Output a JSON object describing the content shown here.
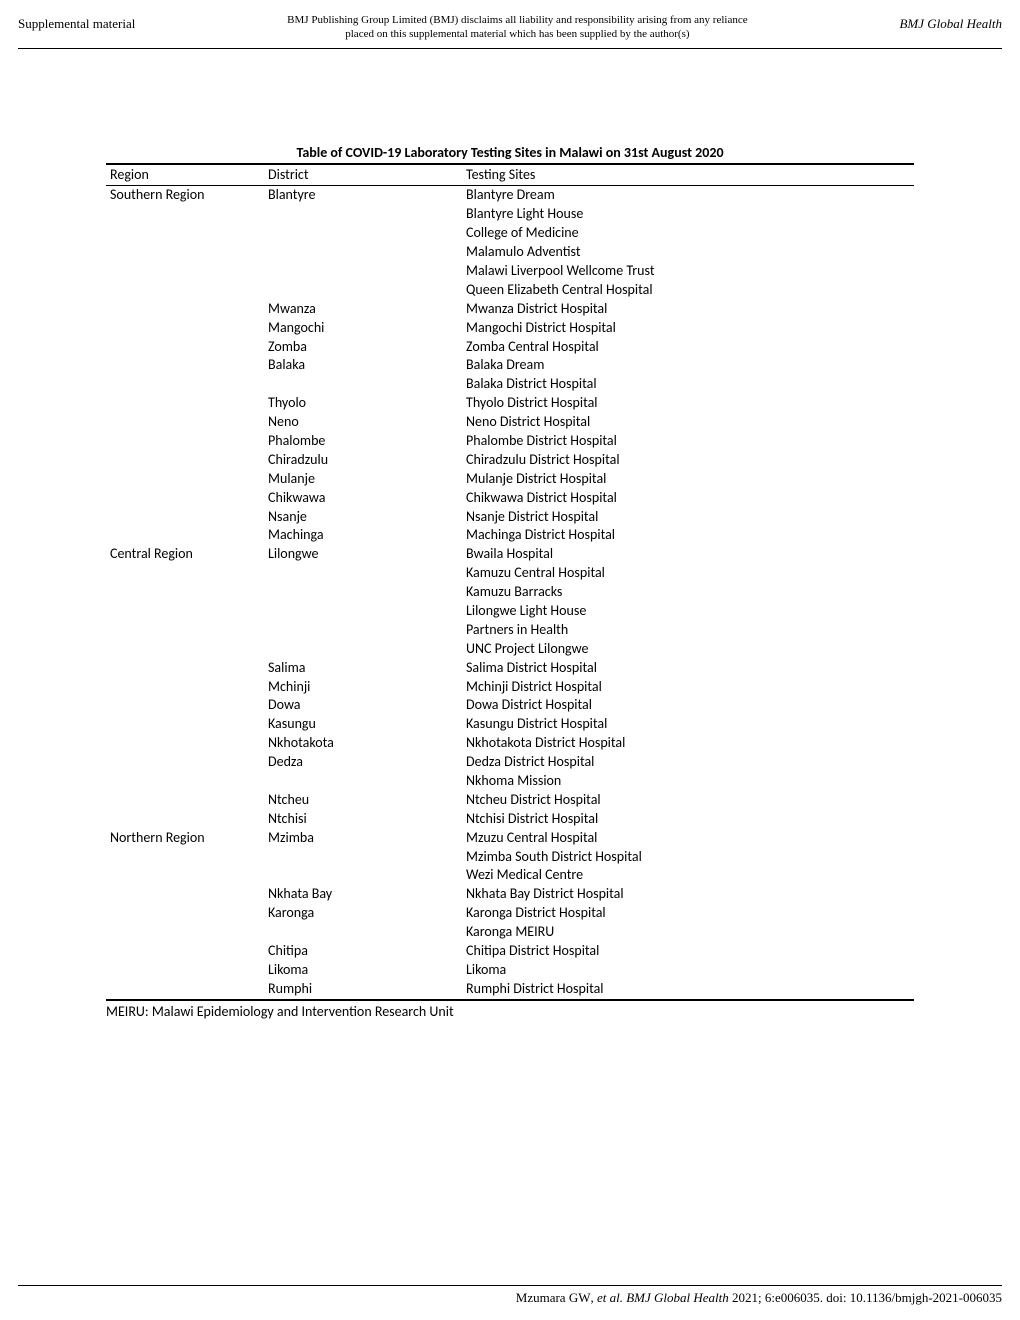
{
  "header": {
    "left": "Supplemental material",
    "disclaimer_line1": "BMJ Publishing Group Limited (BMJ) disclaims all liability and responsibility arising from any reliance",
    "disclaimer_line2": "placed on this supplemental material which has been supplied by the author(s)",
    "journal": "BMJ Global Health"
  },
  "table": {
    "title": "Table of COVID-19 Laboratory Testing Sites in Malawi on 31st August 2020",
    "columns": {
      "region": "Region",
      "district": "District",
      "sites": "Testing Sites"
    },
    "rows": [
      {
        "region": "Southern Region",
        "district": "Blantyre",
        "site": "Blantyre Dream"
      },
      {
        "region": "",
        "district": "",
        "site": "Blantyre Light House"
      },
      {
        "region": "",
        "district": "",
        "site": "College of Medicine"
      },
      {
        "region": "",
        "district": "",
        "site": "Malamulo Adventist"
      },
      {
        "region": "",
        "district": "",
        "site": "Malawi Liverpool Wellcome Trust"
      },
      {
        "region": "",
        "district": "",
        "site": "Queen Elizabeth Central Hospital"
      },
      {
        "region": "",
        "district": "Mwanza",
        "site": "Mwanza District Hospital"
      },
      {
        "region": "",
        "district": "Mangochi",
        "site": "Mangochi District Hospital"
      },
      {
        "region": "",
        "district": "Zomba",
        "site": "Zomba Central Hospital"
      },
      {
        "region": "",
        "district": "Balaka",
        "site": "Balaka Dream"
      },
      {
        "region": "",
        "district": "",
        "site": "Balaka District Hospital"
      },
      {
        "region": "",
        "district": "Thyolo",
        "site": "Thyolo District Hospital"
      },
      {
        "region": "",
        "district": "Neno",
        "site": "Neno District Hospital"
      },
      {
        "region": "",
        "district": "Phalombe",
        "site": "Phalombe District Hospital"
      },
      {
        "region": "",
        "district": "Chiradzulu",
        "site": "Chiradzulu District Hospital"
      },
      {
        "region": "",
        "district": "Mulanje",
        "site": "Mulanje District Hospital"
      },
      {
        "region": "",
        "district": "Chikwawa",
        "site": "Chikwawa District Hospital"
      },
      {
        "region": "",
        "district": "Nsanje",
        "site": "Nsanje District Hospital"
      },
      {
        "region": "",
        "district": "Machinga",
        "site": "Machinga District Hospital"
      },
      {
        "region": "Central Region",
        "district": "Lilongwe",
        "site": "Bwaila Hospital"
      },
      {
        "region": "",
        "district": "",
        "site": "Kamuzu Central Hospital"
      },
      {
        "region": "",
        "district": "",
        "site": "Kamuzu Barracks"
      },
      {
        "region": "",
        "district": "",
        "site": "Lilongwe Light House"
      },
      {
        "region": "",
        "district": "",
        "site": "Partners in Health"
      },
      {
        "region": "",
        "district": "",
        "site": "UNC Project Lilongwe"
      },
      {
        "region": "",
        "district": "Salima",
        "site": "Salima District Hospital"
      },
      {
        "region": "",
        "district": "Mchinji",
        "site": "Mchinji District Hospital"
      },
      {
        "region": "",
        "district": "Dowa",
        "site": "Dowa District Hospital"
      },
      {
        "region": "",
        "district": "Kasungu",
        "site": "Kasungu District Hospital"
      },
      {
        "region": "",
        "district": "Nkhotakota",
        "site": "Nkhotakota District Hospital"
      },
      {
        "region": "",
        "district": "Dedza",
        "site": "Dedza District Hospital"
      },
      {
        "region": "",
        "district": "",
        "site": "Nkhoma Mission"
      },
      {
        "region": "",
        "district": "Ntcheu",
        "site": "Ntcheu District Hospital"
      },
      {
        "region": "",
        "district": "Ntchisi",
        "site": "Ntchisi District Hospital"
      },
      {
        "region": "Northern Region",
        "district": "Mzimba",
        "site": "Mzuzu Central Hospital"
      },
      {
        "region": "",
        "district": "",
        "site": "Mzimba South District Hospital"
      },
      {
        "region": "",
        "district": "",
        "site": "Wezi Medical Centre"
      },
      {
        "region": "",
        "district": "Nkhata Bay",
        "site": "Nkhata Bay District Hospital"
      },
      {
        "region": "",
        "district": "Karonga",
        "site": "Karonga District Hospital"
      },
      {
        "region": "",
        "district": "",
        "site": "Karonga MEIRU"
      },
      {
        "region": "",
        "district": "Chitipa",
        "site": "Chitipa District Hospital"
      },
      {
        "region": "",
        "district": "Likoma",
        "site": "Likoma"
      },
      {
        "region": "",
        "district": "Rumphi",
        "site": "Rumphi District Hospital"
      }
    ]
  },
  "footnote": "MEIRU: Malawi Epidemiology and Intervention Research Unit",
  "footer": {
    "authors": "Mzumara GW",
    "etal": ", et al. BMJ Global Health",
    "rest": " 2021; 6:e006035. doi: 10.1136/bmjgh-2021-006035"
  }
}
